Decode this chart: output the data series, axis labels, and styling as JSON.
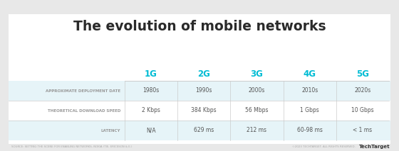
{
  "title": "The evolution of mobile networks",
  "title_color": "#2a2a2a",
  "bg_color": "#e8e8e8",
  "card_color": "#ffffff",
  "header_color": "#00bcd4",
  "row_label_color": "#999999",
  "cell_text_color": "#555555",
  "cell_color_shaded": "#e6f4f8",
  "cell_color_plain": "#ffffff",
  "sep_color": "#cccccc",
  "generations": [
    "1G",
    "2G",
    "3G",
    "4G",
    "5G"
  ],
  "row_labels": [
    "APPROXIMATE DEPLOYMENT DATE",
    "THEORETICAL DOWNLOAD SPEED",
    "LATENCY"
  ],
  "table_data": [
    [
      "1980s",
      "1990s",
      "2000s",
      "2010s",
      "2020s"
    ],
    [
      "2 Kbps",
      "384 Kbps",
      "56 Mbps",
      "1 Gbps",
      "10 Gbps"
    ],
    [
      "N/A",
      "629 ms",
      "212 ms",
      "60-98 ms",
      "< 1 ms"
    ]
  ],
  "footer_left": "SOURCE: SETTING THE SCENE FOR ENABLING NETWORKS, NOKIA (TIE, ERICSSON & E.)",
  "footer_right": "©2023 TECHTARGET. ALL RIGHTS RESERVED.  ",
  "footer_brand": "TechTarget"
}
